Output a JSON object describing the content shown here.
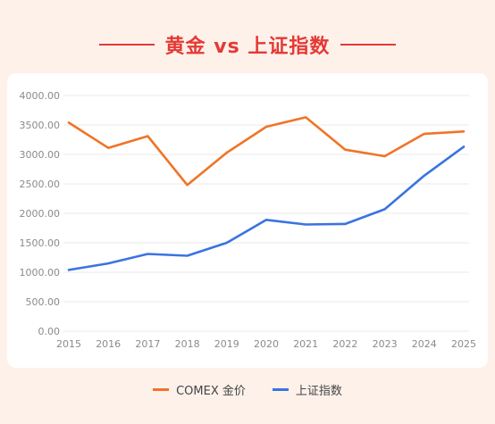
{
  "title": "黄金 vs 上证指数",
  "colors": {
    "background": "#fdf1ea",
    "accent": "#e53935",
    "gold": "#f07427",
    "sse": "#3b73e0",
    "grid": "#e8e8e8"
  },
  "chart_data": {
    "type": "line",
    "title": "黄金 vs 上证指数",
    "x": [
      "2015",
      "2016",
      "2017",
      "2018",
      "2019",
      "2020",
      "2021",
      "2022",
      "2023",
      "2024",
      "2025"
    ],
    "ylim": [
      0,
      4000
    ],
    "yticks": [
      "0.00",
      "500.00",
      "1000.00",
      "1500.00",
      "2000.00",
      "2500.00",
      "3000.00",
      "3500.00",
      "4000.00"
    ],
    "grid": true,
    "legend_position": "bottom",
    "series": [
      {
        "name": "COMEX 金价",
        "color": "#f07427",
        "values": [
          3540,
          3110,
          3310,
          2480,
          3030,
          3470,
          3630,
          3080,
          2970,
          3350,
          3390
        ]
      },
      {
        "name": "上证指数",
        "color": "#3b73e0",
        "values": [
          1040,
          1150,
          1310,
          1280,
          1500,
          1890,
          1810,
          1820,
          2070,
          2640,
          3130
        ]
      }
    ]
  }
}
